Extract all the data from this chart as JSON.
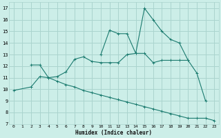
{
  "xlabel": "Humidex (Indice chaleur)",
  "bg_color": "#cceee8",
  "grid_color": "#aad4ce",
  "line_color": "#1a7a6e",
  "line1_x": [
    10,
    11,
    12,
    13,
    14,
    15,
    16,
    17,
    18,
    19,
    20
  ],
  "line1_y": [
    13.0,
    15.1,
    14.8,
    14.8,
    13.1,
    17.0,
    16.0,
    15.0,
    14.3,
    14.0,
    12.5
  ],
  "line2_x": [
    2,
    3,
    4,
    5,
    6,
    7,
    8,
    9,
    10,
    11,
    12,
    13,
    14,
    15,
    16,
    17,
    18,
    19,
    20,
    21,
    22
  ],
  "line2_y": [
    12.1,
    12.1,
    11.0,
    11.1,
    11.5,
    12.6,
    12.8,
    12.4,
    12.3,
    12.3,
    12.3,
    13.0,
    13.1,
    13.1,
    12.3,
    12.5,
    12.5,
    12.5,
    12.5,
    11.4,
    9.0
  ],
  "line3_x": [
    0,
    2,
    3,
    4,
    5,
    6,
    7,
    8,
    9,
    10,
    11,
    12,
    13,
    14,
    15,
    16,
    17,
    18,
    19,
    20,
    21,
    22,
    23
  ],
  "line3_y": [
    9.9,
    10.2,
    11.1,
    11.0,
    10.7,
    10.4,
    10.2,
    9.9,
    9.7,
    9.5,
    9.3,
    9.1,
    8.9,
    8.7,
    8.5,
    8.3,
    8.1,
    7.9,
    7.7,
    7.5,
    7.5,
    7.5,
    7.3
  ],
  "xlim": [
    -0.5,
    23.5
  ],
  "ylim": [
    7,
    17.5
  ],
  "xticks": [
    0,
    1,
    2,
    3,
    4,
    5,
    6,
    7,
    8,
    9,
    10,
    11,
    12,
    13,
    14,
    15,
    16,
    17,
    18,
    19,
    20,
    21,
    22,
    23
  ],
  "yticks": [
    7,
    8,
    9,
    10,
    11,
    12,
    13,
    14,
    15,
    16,
    17
  ]
}
